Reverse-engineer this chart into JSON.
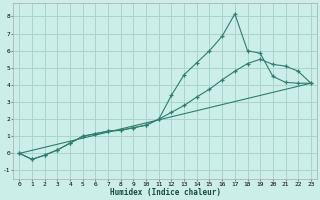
{
  "xlabel": "Humidex (Indice chaleur)",
  "background_color": "#cceee8",
  "grid_color": "#aad4ce",
  "line_color": "#2e7d6e",
  "xlim": [
    -0.5,
    23.5
  ],
  "ylim": [
    -1.5,
    8.8
  ],
  "xticks": [
    0,
    1,
    2,
    3,
    4,
    5,
    6,
    7,
    8,
    9,
    10,
    11,
    12,
    13,
    14,
    15,
    16,
    17,
    18,
    19,
    20,
    21,
    22,
    23
  ],
  "yticks": [
    -1,
    0,
    1,
    2,
    3,
    4,
    5,
    6,
    7,
    8
  ],
  "line1_x": [
    0,
    1,
    2,
    3,
    4,
    5,
    6,
    7,
    8,
    9,
    10,
    11,
    12,
    13,
    14,
    15,
    16,
    17,
    18,
    19,
    20,
    21,
    22,
    23
  ],
  "line1_y": [
    0.0,
    -0.35,
    -0.1,
    0.2,
    0.6,
    1.0,
    1.15,
    1.3,
    1.35,
    1.5,
    1.65,
    2.0,
    2.4,
    2.8,
    3.3,
    3.75,
    4.3,
    4.8,
    5.25,
    5.5,
    5.2,
    5.1,
    4.8,
    4.1
  ],
  "line2_x": [
    0,
    1,
    2,
    3,
    4,
    5,
    6,
    7,
    8,
    9,
    10,
    11,
    12,
    13,
    14,
    15,
    16,
    17,
    18,
    19,
    20,
    21,
    22,
    23
  ],
  "line2_y": [
    0.0,
    -0.35,
    -0.1,
    0.2,
    0.6,
    1.0,
    1.15,
    1.3,
    1.35,
    1.5,
    1.65,
    2.0,
    3.4,
    4.6,
    5.3,
    6.0,
    6.85,
    8.15,
    6.0,
    5.85,
    4.5,
    4.15,
    4.1,
    4.1
  ],
  "line3_x": [
    0,
    23
  ],
  "line3_y": [
    0.0,
    4.1
  ]
}
